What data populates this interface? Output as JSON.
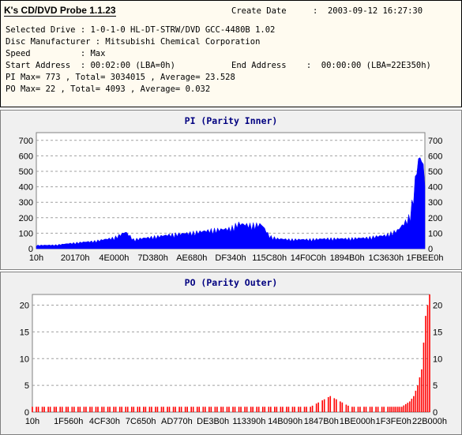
{
  "header": {
    "app_title": "K's CD/DVD Probe 1.1.23",
    "create_date_label": "Create Date",
    "create_date_value": ":  2003-09-12 16:27:30",
    "drive_line": "Selected Drive : 1-0-1-0 HL-DT-STRW/DVD GCC-4480B 1.02",
    "manufacturer_line": "Disc Manufacturer : Mitsubishi Chemical Corporation",
    "speed_line": "Speed          : Max",
    "start_line": "Start Address  : 00:02:00 (LBA=0h)",
    "end_line": "End Address    :  00:00:00 (LBA=22E350h)",
    "pi_line": "PI Max= 773 , Total= 3034015 , Average= 23.528",
    "po_line": "PO Max= 22 , Total= 4093 , Average= 0.032"
  },
  "chart_data": [
    {
      "type": "area",
      "title": "PI (Parity Inner)",
      "color": "#0000ff",
      "ylim": [
        0,
        750
      ],
      "yticks": [
        0,
        100,
        200,
        300,
        400,
        500,
        600,
        700
      ],
      "grid": true,
      "x_tick_labels": [
        "10h",
        "20170h",
        "4E000h",
        "7D380h",
        "AE680h",
        "DF340h",
        "115C80h",
        "14F0C0h",
        "1894B0h",
        "1C3630h",
        "1FBEE0h"
      ],
      "x": [
        0,
        0.05,
        0.1,
        0.15,
        0.2,
        0.23,
        0.25,
        0.3,
        0.35,
        0.4,
        0.45,
        0.5,
        0.52,
        0.55,
        0.58,
        0.6,
        0.62,
        0.65,
        0.7,
        0.75,
        0.8,
        0.85,
        0.88,
        0.9,
        0.93,
        0.95,
        0.96,
        0.97,
        0.98,
        0.99,
        1.0
      ],
      "values": [
        20,
        22,
        35,
        45,
        65,
        100,
        55,
        70,
        85,
        95,
        110,
        120,
        150,
        140,
        145,
        75,
        60,
        55,
        55,
        60,
        60,
        65,
        75,
        80,
        110,
        160,
        190,
        300,
        500,
        560,
        420
      ]
    },
    {
      "type": "bar",
      "title": "PO (Parity Outer)",
      "color": "#ff0000",
      "ylim": [
        0,
        22
      ],
      "yticks": [
        0,
        5,
        10,
        15,
        20
      ],
      "grid": true,
      "x_tick_labels": [
        "10h",
        "1F560h",
        "4CF30h",
        "7C650h",
        "AD770h",
        "DE3B0h",
        "113390h",
        "14B090h",
        "1847B0h",
        "1BE000h",
        "1F3FE0h",
        "22B000h"
      ],
      "x": [
        0,
        0.1,
        0.2,
        0.3,
        0.4,
        0.5,
        0.6,
        0.7,
        0.75,
        0.8,
        0.85,
        0.9,
        0.93,
        0.95,
        0.96,
        0.97,
        0.98,
        0.99,
        1.0
      ],
      "values": [
        1,
        1,
        1,
        1,
        1,
        1,
        1,
        1,
        3,
        1,
        1,
        1,
        1,
        2,
        3,
        5,
        8,
        18,
        22
      ]
    }
  ]
}
